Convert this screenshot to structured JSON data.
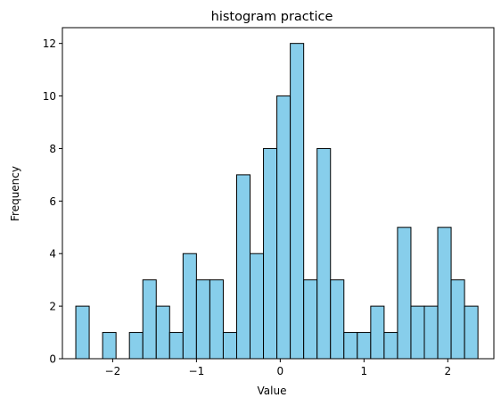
{
  "chart_data": {
    "type": "histogram",
    "title": "histogram practice",
    "xlabel": "Value",
    "ylabel": "Frequency",
    "xlim": [
      -2.6,
      2.55
    ],
    "ylim": [
      0,
      12.6
    ],
    "x_ticks": [
      -2,
      -1,
      0,
      1,
      2
    ],
    "x_tick_labels": [
      "−2",
      "−1",
      "0",
      "1",
      "2"
    ],
    "y_ticks": [
      0,
      2,
      4,
      6,
      8,
      10,
      12
    ],
    "y_tick_labels": [
      "0",
      "2",
      "4",
      "6",
      "8",
      "10",
      "12"
    ],
    "bin_start": -2.44,
    "bin_width": 0.16,
    "counts": [
      2,
      0,
      1,
      0,
      1,
      3,
      2,
      1,
      4,
      3,
      3,
      1,
      7,
      4,
      8,
      10,
      12,
      3,
      8,
      3,
      1,
      1,
      2,
      1,
      5,
      2,
      2,
      5,
      3,
      2
    ],
    "bar_color": "#87CEEB",
    "edge_color": "#000000",
    "grid": false,
    "legend": "none"
  }
}
